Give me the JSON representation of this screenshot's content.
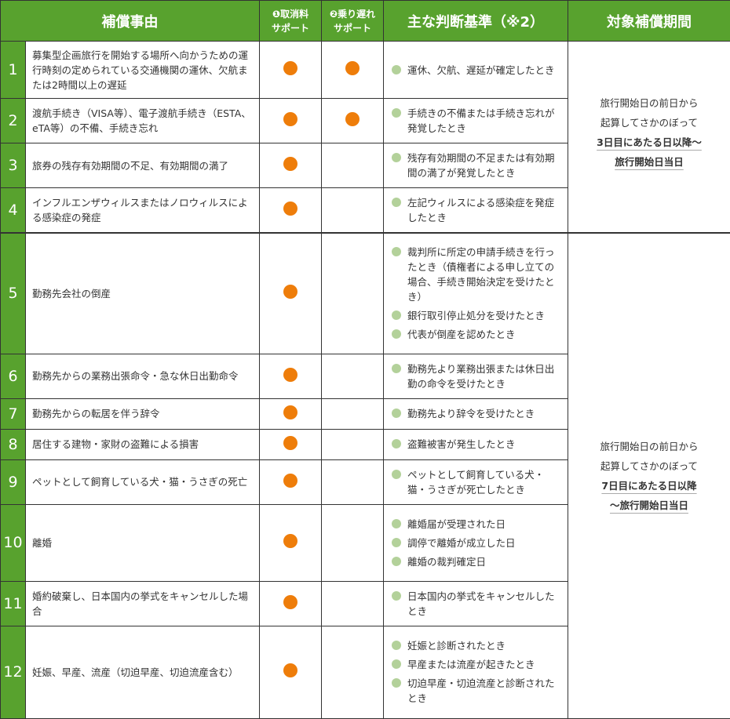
{
  "header": {
    "reason": "補償事由",
    "col1": [
      "❶取消料",
      "サポート"
    ],
    "col2": [
      "❷乗り遅れ",
      "サポート"
    ],
    "criteria": "主な判断基準（※2）",
    "period": "対象補償期間"
  },
  "colors": {
    "header_bg": "#58a22e",
    "mark": "#ee7d0a",
    "bullet": "#b3d19a"
  },
  "rows": [
    {
      "no": "1",
      "reason": "募集型企画旅行を開始する場所へ向かうための運行時刻の定められている交通機関の運休、欠航または2時間以上の遅延",
      "cancel": true,
      "missed": true,
      "criteria": [
        "運休、欠航、遅延が確定したとき"
      ]
    },
    {
      "no": "2",
      "reason": "渡航手続き（VISA等）、電子渡航手続き（ESTA、eTA等）の不備、手続き忘れ",
      "cancel": true,
      "missed": true,
      "criteria": [
        "手続きの不備または手続き忘れが発覚したとき"
      ]
    },
    {
      "no": "3",
      "reason": "旅券の残存有効期間の不足、有効期間の満了",
      "cancel": true,
      "missed": false,
      "criteria": [
        "残存有効期間の不足または有効期間の満了が発覚したとき"
      ]
    },
    {
      "no": "4",
      "reason": "インフルエンザウィルスまたはノロウィルスによる感染症の発症",
      "cancel": true,
      "missed": false,
      "criteria": [
        "左記ウィルスによる感染症を発症したとき"
      ]
    },
    {
      "no": "5",
      "reason": "勤務先会社の倒産",
      "cancel": true,
      "missed": false,
      "criteria": [
        "裁判所に所定の申請手続きを行ったとき（債権者による申し立ての場合、手続き開始決定を受けたとき）",
        "銀行取引停止処分を受けたとき",
        "代表が倒産を認めたとき"
      ]
    },
    {
      "no": "6",
      "reason": "勤務先からの業務出張命令・急な休日出勤命令",
      "cancel": true,
      "missed": false,
      "criteria": [
        "勤務先より業務出張または休日出勤の命令を受けたとき"
      ]
    },
    {
      "no": "7",
      "reason": "勤務先からの転居を伴う辞令",
      "cancel": true,
      "missed": false,
      "criteria": [
        "勤務先より辞令を受けたとき"
      ]
    },
    {
      "no": "8",
      "reason": "居住する建物・家財の盗難による損害",
      "cancel": true,
      "missed": false,
      "criteria": [
        "盗難被害が発生したとき"
      ]
    },
    {
      "no": "9",
      "reason": "ペットとして飼育している犬・猫・うさぎの死亡",
      "cancel": true,
      "missed": false,
      "criteria": [
        "ペットとして飼育している犬・猫・うさぎが死亡したとき"
      ]
    },
    {
      "no": "10",
      "reason": "離婚",
      "cancel": true,
      "missed": false,
      "criteria": [
        "離婚届が受理された日",
        "調停で離婚が成立した日",
        "離婚の裁判確定日"
      ]
    },
    {
      "no": "11",
      "reason": "婚約破棄し、日本国内の挙式をキャンセルした場合",
      "cancel": true,
      "missed": false,
      "criteria": [
        "日本国内の挙式をキャンセルしたとき"
      ]
    },
    {
      "no": "12",
      "reason": "妊娠、早産、流産（切迫早産、切迫流産含む）",
      "cancel": true,
      "missed": false,
      "criteria": [
        "妊娠と診断されたとき",
        "早産または流産が起きたとき",
        "切迫早産・切迫流産と診断されたとき"
      ]
    }
  ],
  "periods": [
    {
      "lines": [
        "旅行開始日の前日から",
        "起算してさかのぼって"
      ],
      "emphasis": [
        "3日目にあたる日以降〜",
        "旅行開始日当日"
      ]
    },
    {
      "lines": [
        "旅行開始日の前日から",
        "起算してさかのぼって"
      ],
      "emphasis": [
        "7日目にあたる日以降",
        "〜旅行開始日当日"
      ]
    }
  ]
}
